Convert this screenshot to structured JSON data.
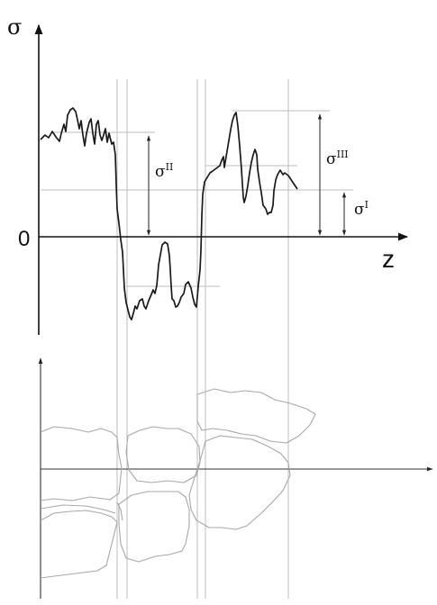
{
  "colors": {
    "curve": "#1a1a1a",
    "axis": "#111111",
    "guide": "#b8b8b8",
    "grain": "#a8a8a8"
  },
  "labels": {
    "sigma_axis": "σ",
    "z_axis": "z",
    "origin": "0",
    "sigma_two_base": "σ",
    "sigma_two_sup": "II",
    "sigma_three_base": "σ",
    "sigma_three_sup": "III",
    "sigma_one_base": "σ",
    "sigma_one_sup": "I"
  }
}
